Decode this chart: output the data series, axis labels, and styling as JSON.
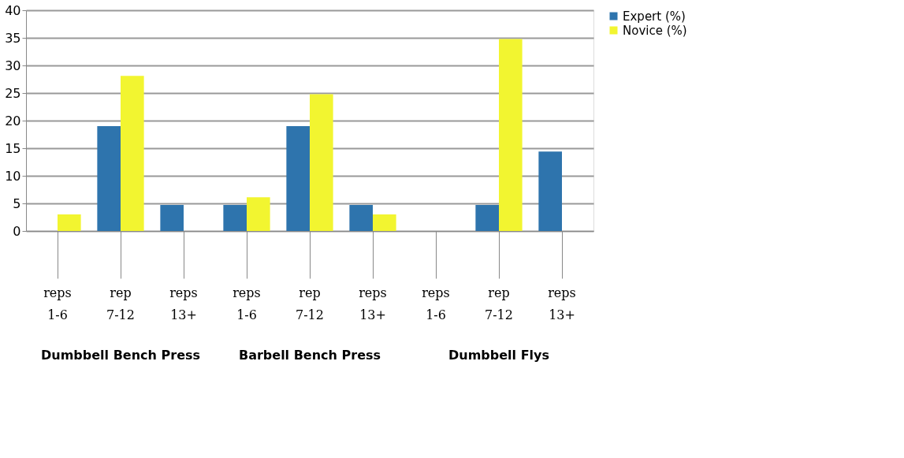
{
  "chart_data": {
    "type": "bar",
    "categories": [
      "reps 1-6",
      "rep 7-12",
      "reps 13+",
      "reps 1-6",
      "rep 7-12",
      "reps 13+",
      "reps 1-6",
      "rep 7-12",
      "reps 13+"
    ],
    "series": [
      {
        "name": "Expert (%)",
        "color": "#2e74ad",
        "values": [
          0,
          19,
          4.7,
          4.7,
          19,
          4.7,
          0,
          4.7,
          14.4
        ]
      },
      {
        "name": "Novice (%)",
        "color": "#f2f530",
        "values": [
          3,
          28.1,
          0,
          6.1,
          24.8,
          3,
          0,
          34.8,
          0
        ]
      }
    ],
    "annotations": [
      "Dumbbell Bench Press",
      "Barbell Bench Press",
      "Dumbbell Flys"
    ],
    "ylim": [
      0,
      40
    ],
    "yticks": [
      0,
      5,
      10,
      15,
      20,
      25,
      30,
      35,
      40
    ],
    "grid": "y",
    "legend": "right"
  }
}
